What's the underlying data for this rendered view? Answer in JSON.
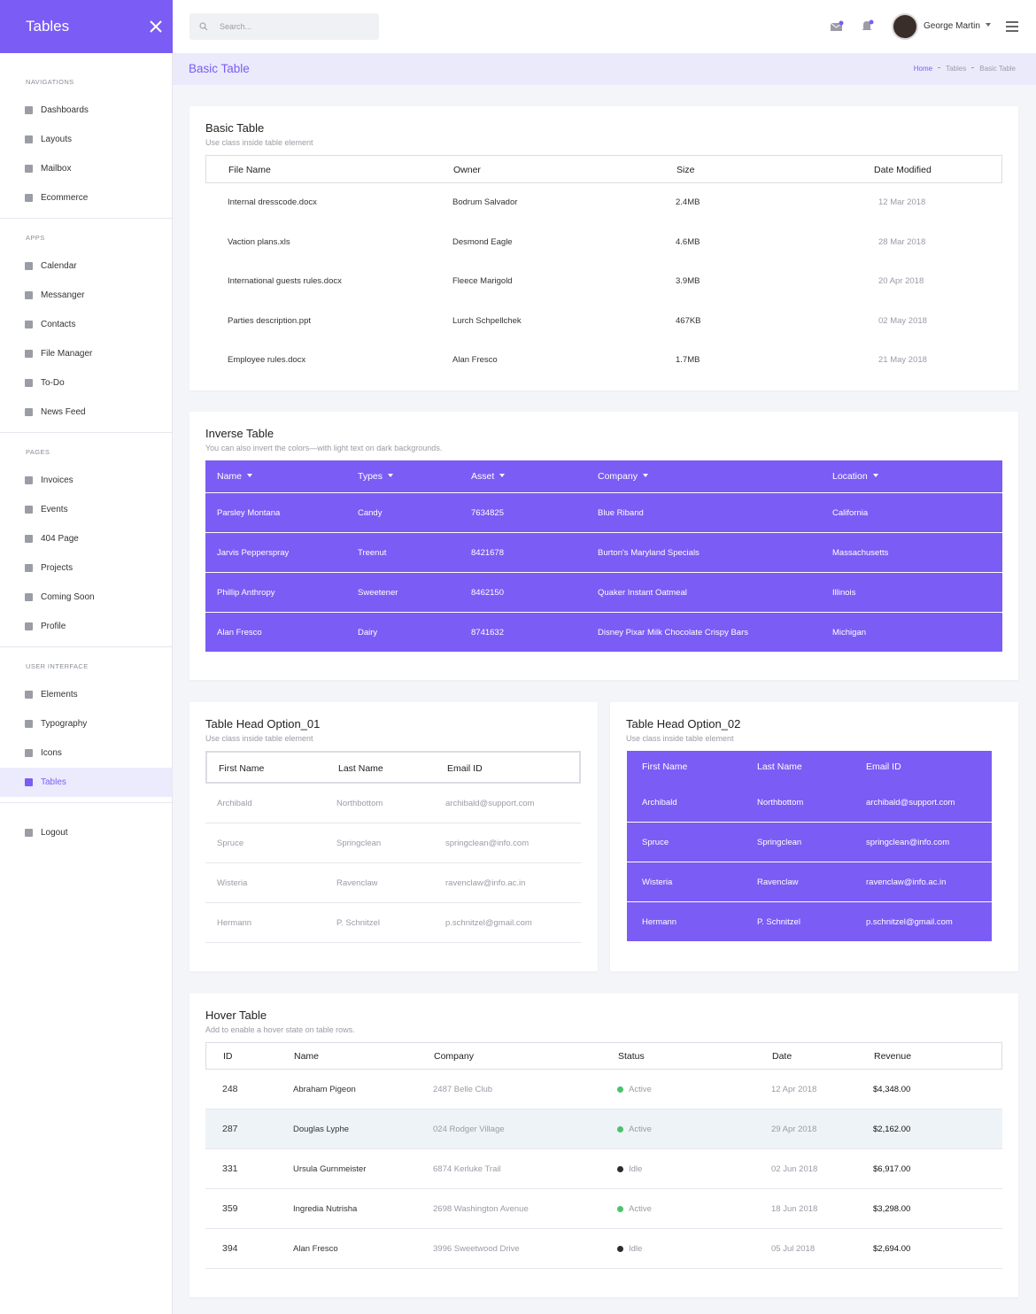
{
  "sidebar": {
    "title": "Tables",
    "sections": [
      {
        "heading": "NAVIGATIONS",
        "items": [
          "Dashboards",
          "Layouts",
          "Mailbox",
          "Ecommerce"
        ]
      },
      {
        "heading": "APPS",
        "items": [
          "Calendar",
          "Messanger",
          "Contacts",
          "File Manager",
          "To-Do",
          "News Feed"
        ]
      },
      {
        "heading": "PAGES",
        "items": [
          "Invoices",
          "Events",
          "404 Page",
          "Projects",
          "Coming Soon",
          "Profile"
        ]
      },
      {
        "heading": "USER INTERFACE",
        "items": [
          "Elements",
          "Typography",
          "Icons",
          "Tables"
        ]
      }
    ],
    "logout": "Logout"
  },
  "topbar": {
    "search_placeholder": "Search...",
    "user": "George Martin"
  },
  "page_header": {
    "title": "Basic Table",
    "breadcrumb": [
      "Home",
      "Tables",
      "Basic Table"
    ]
  },
  "cards": [
    {
      "title": "Basic Table",
      "subtitle": "Use class inside table element",
      "headers": [
        "File Name",
        "Owner",
        "Size",
        "Date Modified"
      ],
      "rows": [
        [
          "Internal dresscode.docx",
          "Bodrum Salvador",
          "2.4MB",
          "12 Mar 2018"
        ],
        [
          "Vaction plans.xls",
          "Desmond Eagle",
          "4.6MB",
          "28 Mar 2018"
        ],
        [
          "International guests rules.docx",
          "Fleece Marigold",
          "3.9MB",
          "20 Apr 2018"
        ],
        [
          "Parties description.ppt",
          "Lurch Schpellchek",
          "467KB",
          "02 May 2018"
        ],
        [
          "Employee rules.docx",
          "Alan Fresco",
          "1.7MB",
          "21 May 2018"
        ]
      ]
    },
    {
      "title": "Inverse Table",
      "subtitle": "You can also invert the colors—with light text on dark backgrounds.",
      "headers": [
        "Name",
        "Types",
        "Asset",
        "Company",
        "Location"
      ],
      "rows": [
        [
          "Parsley Montana",
          "Candy",
          "7634825",
          "Blue Riband",
          "California"
        ],
        [
          "Jarvis Pepperspray",
          "Treenut",
          "8421678",
          "Burton's Maryland Specials",
          "Massachusetts"
        ],
        [
          "Phillip Anthropy",
          "Sweetener",
          "8462150",
          "Quaker Instant Oatmeal",
          "Illinois"
        ],
        [
          "Alan Fresco",
          "Dairy",
          "8741632",
          "Disney Pixar Milk Chocolate Crispy Bars",
          "Michigan"
        ]
      ]
    },
    {
      "title": "Table Head Option_01",
      "subtitle": "Use class inside table element",
      "headers": [
        "First Name",
        "Last Name",
        "Email ID"
      ],
      "rows": [
        [
          "Archibald",
          "Northbottom",
          "archibald@support.com"
        ],
        [
          "Spruce",
          "Springclean",
          "springclean@info.com"
        ],
        [
          "Wisteria",
          "Ravenclaw",
          "ravenclaw@info.ac.in"
        ],
        [
          "Hermann",
          "P. Schnitzel",
          "p.schnitzel@gmail.com"
        ]
      ]
    },
    {
      "title": "Table Head Option_02",
      "subtitle": "Use class inside table element",
      "headers": [
        "First Name",
        "Last Name",
        "Email ID"
      ],
      "rows": [
        [
          "Archibald",
          "Northbottom",
          "archibald@support.com"
        ],
        [
          "Spruce",
          "Springclean",
          "springclean@info.com"
        ],
        [
          "Wisteria",
          "Ravenclaw",
          "ravenclaw@info.ac.in"
        ],
        [
          "Hermann",
          "P. Schnitzel",
          "p.schnitzel@gmail.com"
        ]
      ]
    },
    {
      "title": "Hover Table",
      "subtitle": "Add to enable a hover state on table rows.",
      "headers": [
        "ID",
        "Name",
        "Company",
        "Status",
        "Date",
        "Revenue"
      ],
      "rows": [
        [
          "248",
          "Abraham Pigeon",
          "2487 Belle Club",
          "Active",
          "12 Apr 2018",
          "$4,348.00"
        ],
        [
          "287",
          "Douglas Lyphe",
          "024 Rodger Village",
          "Active",
          "29 Apr 2018",
          "$2,162.00"
        ],
        [
          "331",
          "Ursula Gurnmeister",
          "6874 Kerluke Trail",
          "Idle",
          "02 Jun 2018",
          "$6,917.00"
        ],
        [
          "359",
          "Ingredia Nutrisha",
          "2698 Washington Avenue",
          "Active",
          "18 Jun 2018",
          "$3,298.00"
        ],
        [
          "394",
          "Alan Fresco",
          "3996 Sweetwood Drive",
          "Idle",
          "05 Jul 2018",
          "$2,694.00"
        ]
      ],
      "status_colors": [
        "#4cc36a",
        "#4cc36a",
        "#2d2d2d",
        "#4cc36a",
        "#2d2d2d"
      ]
    }
  ]
}
